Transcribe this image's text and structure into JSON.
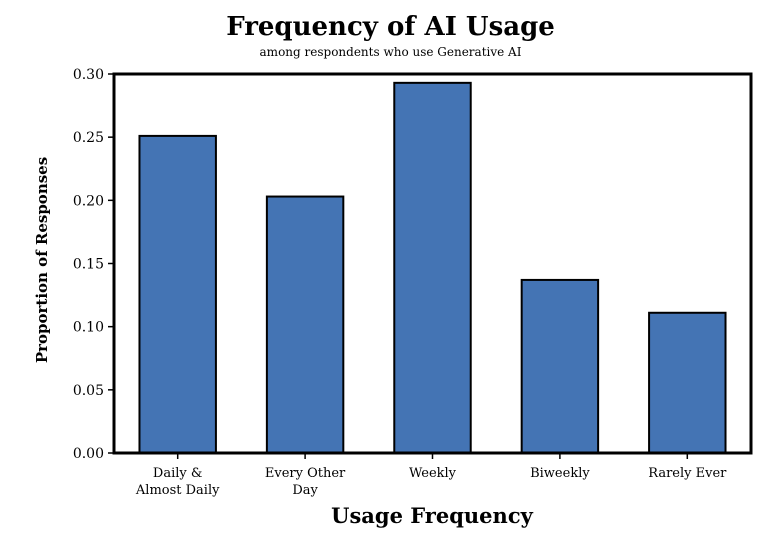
{
  "chart_data": {
    "type": "bar",
    "title": "Frequency of AI Usage",
    "subtitle": "among respondents who use Generative AI",
    "xlabel": "Usage Frequency",
    "ylabel": "Proportion of Responses",
    "categories": [
      [
        "Daily &",
        "Almost Daily"
      ],
      [
        "Every Other",
        "Day"
      ],
      [
        "Weekly"
      ],
      [
        "Biweekly"
      ],
      [
        "Rarely Ever"
      ]
    ],
    "values": [
      0.251,
      0.203,
      0.293,
      0.137,
      0.111
    ],
    "ylim": [
      0,
      0.3
    ],
    "yticks": [
      "0.00",
      "0.05",
      "0.10",
      "0.15",
      "0.20",
      "0.25",
      "0.30"
    ],
    "grid": false,
    "bar_color": "#4474b4",
    "bar_edge_color": "#000000"
  }
}
